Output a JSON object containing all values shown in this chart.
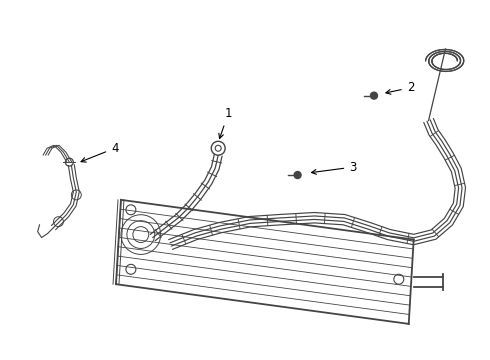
{
  "bg_color": "#ffffff",
  "line_color": "#444444",
  "lw_main": 1.0,
  "lw_thin": 0.7,
  "figsize": [
    4.9,
    3.6
  ],
  "dpi": 100
}
